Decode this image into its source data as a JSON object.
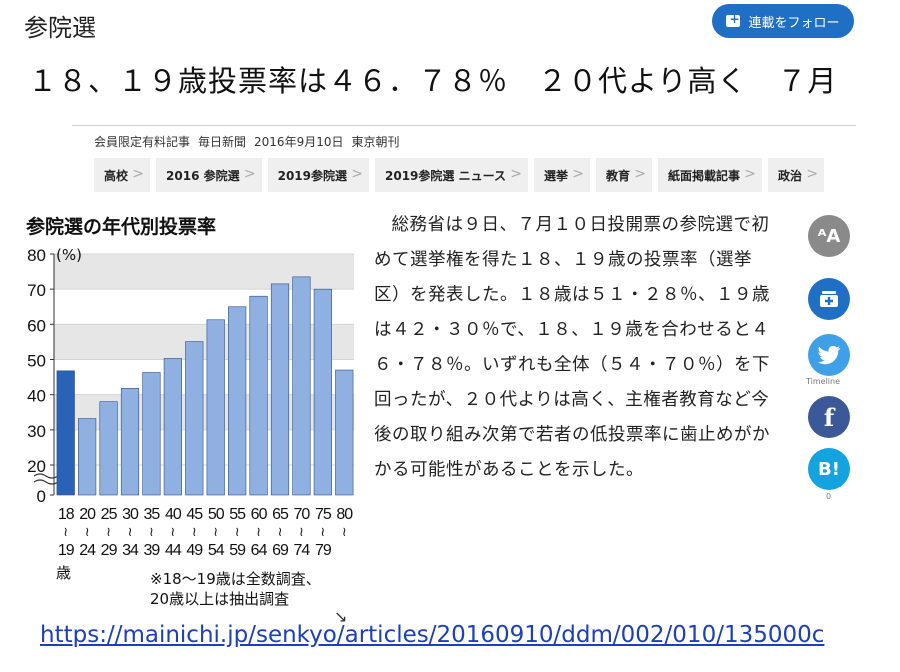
{
  "header": {
    "section_title": "参院選",
    "follow_label": "連載をフォロー"
  },
  "article": {
    "headline": "１８、１９歳投票率は４６．７８％　２０代より高く　７月",
    "meta": {
      "badge": "会員限定有料記事",
      "source": "毎日新聞",
      "date": "2016年9月10日",
      "edition": "東京朝刊"
    },
    "tags": [
      "高校",
      "2016 参院選",
      "2019参院選",
      "2019参院選 ニュース",
      "選挙",
      "教育",
      "紙面掲載記事",
      "政治"
    ],
    "body": "総務省は９日、７月１０日投開票の参院選で初めて選挙権を得た１８、１９歳の投票率（選挙区）を発表した。１８歳は５１・２８％、１９歳は４２・３０％で、１８、１９歳を合わせると４６・７８％。いずれも全体（５４・７０％）を下回ったが、２０代よりは高く、主権者教育など今後の取り組み次第で若者の低投票率に歯止めがかかる可能性があることを示した。"
  },
  "chart": {
    "title": "参院選の年代別投票率",
    "unit": "(%)",
    "age_suffix": "歳",
    "note_line1": "※18～19歳は全数調査、",
    "note_line2": "20歳以上は抽出調査",
    "expand_icon": "↘"
  },
  "chart_data": {
    "type": "bar",
    "categories": [
      "18〜19",
      "20〜24",
      "25〜29",
      "30〜34",
      "35〜39",
      "40〜44",
      "45〜49",
      "50〜54",
      "55〜59",
      "60〜64",
      "65〜69",
      "70〜74",
      "75〜79",
      "80〜"
    ],
    "x_top": [
      "18",
      "20",
      "25",
      "30",
      "35",
      "40",
      "45",
      "50",
      "55",
      "60",
      "65",
      "70",
      "75",
      "80"
    ],
    "x_bottom": [
      "19",
      "24",
      "29",
      "34",
      "39",
      "44",
      "49",
      "54",
      "59",
      "64",
      "69",
      "74",
      "79",
      ""
    ],
    "values": [
      46.78,
      33.2,
      38.0,
      41.8,
      46.3,
      50.3,
      55.1,
      61.3,
      65.0,
      68.0,
      71.5,
      73.5,
      70.0,
      47.0
    ],
    "highlight_index": 0,
    "colors": {
      "highlight": "#2a62b8",
      "bar": "#8fb0e0",
      "band": "#e6e6e6"
    },
    "yticks": [
      "0",
      "20",
      "30",
      "40",
      "50",
      "60",
      "70",
      "80"
    ],
    "ylim": [
      0,
      80
    ],
    "axis_break": true
  },
  "share": {
    "font_label": "ᴬA",
    "twitter_label": "Timeline",
    "facebook_label": "f",
    "hatena_label": "B!",
    "hatena_count": "0"
  },
  "footer": {
    "url": "https://mainichi.jp/senkyo/articles/20160910/ddm/002/010/135000c"
  }
}
